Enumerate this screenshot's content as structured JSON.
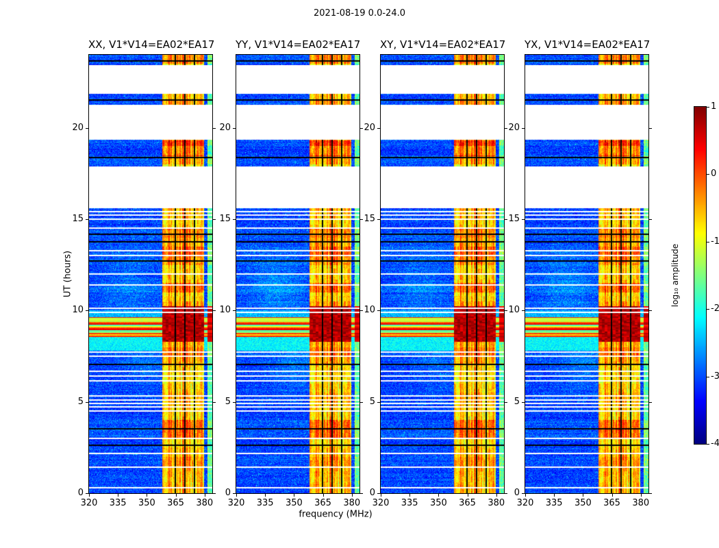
{
  "chart_data": {
    "type": "heatmap",
    "title": "2021-08-19 0.0-24.0",
    "panels": [
      {
        "label": "XX",
        "title": "XX, V1*V14=EA02*EA17"
      },
      {
        "label": "YY",
        "title": "YY, V1*V14=EA02*EA17"
      },
      {
        "label": "XY",
        "title": "XY, V1*V14=EA02*EA17"
      },
      {
        "label": "YX",
        "title": "YX, V1*V14=EA02*EA17"
      }
    ],
    "xlabel": "frequency (MHz)",
    "ylabel": "UT (hours)",
    "x_range": [
      320,
      384
    ],
    "y_range": [
      0,
      24
    ],
    "x_ticks": [
      320,
      335,
      350,
      365,
      380
    ],
    "y_ticks": [
      0,
      5,
      10,
      15,
      20
    ],
    "colorbar": {
      "label": "log₁₀ amplitude",
      "ticks": [
        1,
        0,
        -1,
        -2,
        -3,
        -4
      ],
      "range": [
        -4,
        1
      ],
      "colormap": "jet"
    },
    "features": {
      "background_level": -3.1,
      "rfi_band_mhz": [
        358,
        379.5
      ],
      "edge_band_mhz": [
        381.5,
        384
      ],
      "burst_ut": [
        8.55,
        9.65
      ],
      "rfi_saturated_ut": [
        8.3,
        10.25
      ],
      "data_gaps_ut": [
        [
          15.6,
          17.9
        ],
        [
          19.35,
          21.25
        ],
        [
          21.85,
          23.45
        ]
      ],
      "white_lines_ut": [
        0.35,
        1.45,
        2.2,
        3.05,
        4.55,
        4.75,
        4.95,
        5.15,
        5.35,
        6.2,
        6.45,
        6.7,
        7.55,
        7.75,
        9.95,
        10.15,
        11.45,
        12.05,
        13.05,
        13.3,
        14.55,
        15.05,
        15.25,
        15.45
      ],
      "black_lines_ut": [
        2.65,
        3.55,
        7.1,
        12.75,
        13.8,
        14.2,
        18.42,
        21.55,
        23.7
      ],
      "black_channels_mhz": [
        364.5,
        369.5,
        374.5
      ],
      "bright_stripe_ut": [
        18.45,
        19.3
      ]
    }
  }
}
